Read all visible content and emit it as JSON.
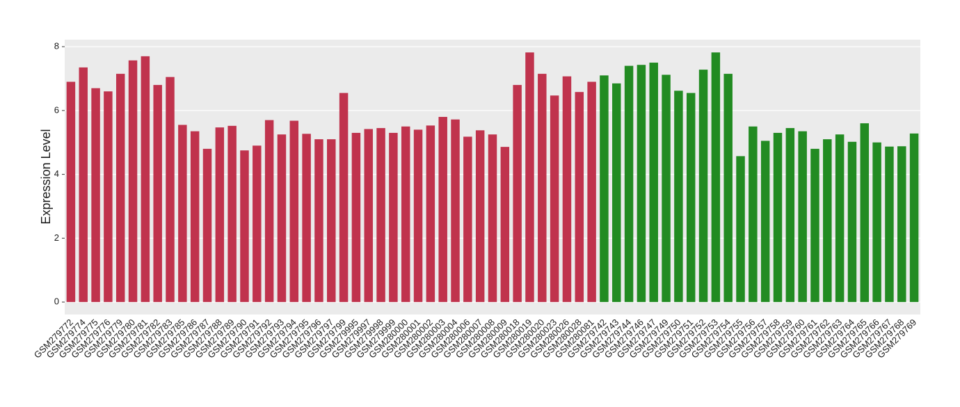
{
  "chart_data": {
    "type": "bar",
    "y_label": "Expression Level",
    "categories": [
      "GSM279772",
      "GSM279774",
      "GSM279775",
      "GSM279776",
      "GSM279779",
      "GSM279780",
      "GSM279781",
      "GSM279782",
      "GSM279783",
      "GSM279785",
      "GSM279786",
      "GSM279787",
      "GSM279788",
      "GSM279789",
      "GSM279790",
      "GSM279791",
      "GSM279792",
      "GSM279793",
      "GSM279794",
      "GSM279795",
      "GSM279796",
      "GSM279797",
      "GSM279799",
      "GSM279995",
      "GSM279997",
      "GSM279998",
      "GSM279999",
      "GSM280000",
      "GSM280001",
      "GSM280002",
      "GSM280003",
      "GSM280004",
      "GSM280006",
      "GSM280007",
      "GSM280008",
      "GSM280009",
      "GSM280018",
      "GSM280019",
      "GSM280020",
      "GSM280023",
      "GSM280026",
      "GSM280028",
      "GSM280081",
      "GSM279742",
      "GSM279743",
      "GSM279744",
      "GSM279746",
      "GSM279747",
      "GSM279749",
      "GSM279750",
      "GSM279751",
      "GSM279752",
      "GSM279753",
      "GSM279754",
      "GSM279755",
      "GSM279756",
      "GSM279757",
      "GSM279758",
      "GSM279759",
      "GSM279760",
      "GSM279761",
      "GSM279762",
      "GSM279763",
      "GSM279764",
      "GSM279765",
      "GSM279766",
      "GSM279767",
      "GSM279768",
      "GSM279769"
    ],
    "values": [
      6.9,
      7.35,
      6.7,
      6.6,
      7.15,
      7.57,
      7.7,
      6.8,
      7.05,
      5.55,
      5.35,
      4.8,
      5.47,
      5.52,
      4.75,
      4.9,
      5.7,
      5.25,
      5.68,
      5.27,
      5.1,
      5.1,
      6.55,
      5.3,
      5.42,
      5.45,
      5.3,
      5.5,
      5.4,
      5.53,
      5.8,
      5.72,
      5.18,
      5.38,
      5.25,
      4.86,
      6.8,
      7.82,
      7.15,
      6.47,
      7.07,
      6.58,
      6.9,
      7.1,
      6.85,
      7.4,
      7.43,
      7.5,
      7.12,
      6.62,
      6.55,
      7.28,
      7.82,
      7.15,
      4.57,
      5.5,
      5.05,
      5.3,
      5.45,
      5.35,
      4.8,
      5.1,
      5.25,
      5.02,
      5.6,
      5.0,
      4.87,
      4.88,
      5.28
    ],
    "colors": [
      "#c0334d",
      "#c0334d",
      "#c0334d",
      "#c0334d",
      "#c0334d",
      "#c0334d",
      "#c0334d",
      "#c0334d",
      "#c0334d",
      "#c0334d",
      "#c0334d",
      "#c0334d",
      "#c0334d",
      "#c0334d",
      "#c0334d",
      "#c0334d",
      "#c0334d",
      "#c0334d",
      "#c0334d",
      "#c0334d",
      "#c0334d",
      "#c0334d",
      "#c0334d",
      "#c0334d",
      "#c0334d",
      "#c0334d",
      "#c0334d",
      "#c0334d",
      "#c0334d",
      "#c0334d",
      "#c0334d",
      "#c0334d",
      "#c0334d",
      "#c0334d",
      "#c0334d",
      "#c0334d",
      "#c0334d",
      "#c0334d",
      "#c0334d",
      "#c0334d",
      "#c0334d",
      "#c0334d",
      "#c0334d",
      "#228b22",
      "#228b22",
      "#228b22",
      "#228b22",
      "#228b22",
      "#228b22",
      "#228b22",
      "#228b22",
      "#228b22",
      "#228b22",
      "#228b22",
      "#228b22",
      "#228b22",
      "#228b22",
      "#228b22",
      "#228b22",
      "#228b22",
      "#228b22",
      "#228b22",
      "#228b22",
      "#228b22",
      "#228b22",
      "#228b22",
      "#228b22",
      "#228b22",
      "#228b22"
    ],
    "ylim": [
      -0.39,
      8.22
    ],
    "yticks": [
      0,
      2,
      4,
      6,
      8
    ],
    "grid": true
  }
}
